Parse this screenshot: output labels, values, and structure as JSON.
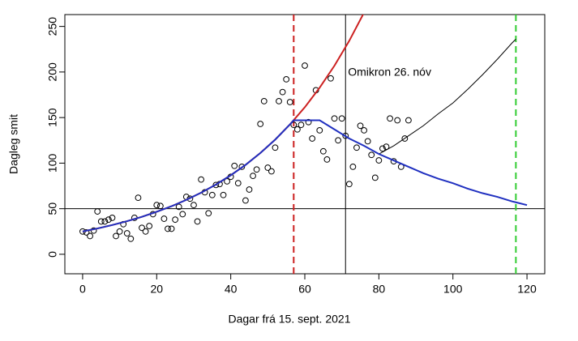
{
  "chart_data": {
    "type": "scatter",
    "xlabel": "Dagar frá 15. sept. 2021",
    "ylabel": "Dagleg smit",
    "xlim": [
      -4.8,
      124.8
    ],
    "ylim": [
      -21.4,
      263
    ],
    "xticks": [
      0,
      20,
      40,
      60,
      80,
      100,
      120
    ],
    "yticks": [
      0,
      50,
      100,
      150,
      200,
      250
    ],
    "point_color": "#000000",
    "x": [
      0,
      1,
      2,
      3,
      4,
      5,
      6,
      7,
      8,
      9,
      10,
      11,
      12,
      13,
      14,
      15,
      16,
      17,
      18,
      19,
      20,
      21,
      22,
      23,
      24,
      25,
      26,
      27,
      28,
      29,
      30,
      31,
      32,
      33,
      34,
      35,
      36,
      37,
      38,
      39,
      40,
      41,
      42,
      43,
      44,
      45,
      46,
      47,
      48,
      49,
      50,
      51,
      52,
      53,
      54,
      55,
      56,
      57,
      58,
      59,
      60,
      61,
      62,
      63,
      64,
      65,
      66,
      67,
      68,
      69,
      70,
      71,
      72,
      73,
      74,
      75,
      76,
      77,
      78,
      79,
      80,
      81,
      82,
      83,
      84,
      85,
      86,
      87,
      88
    ],
    "values": [
      25,
      24,
      20,
      26,
      47,
      36,
      36,
      38,
      40,
      20,
      25,
      33,
      23,
      17,
      40,
      62,
      29,
      25,
      31,
      44,
      54,
      53,
      39,
      28,
      28,
      38,
      52,
      44,
      63,
      61,
      54,
      36,
      82,
      68,
      45,
      65,
      76,
      77,
      65,
      80,
      85,
      97,
      78,
      96,
      59,
      71,
      86,
      93,
      143,
      168,
      95,
      91,
      117,
      168,
      178,
      192,
      167,
      142,
      137,
      142,
      207,
      145,
      127,
      180,
      136,
      113,
      104,
      193,
      149,
      125,
      149,
      130,
      77,
      96,
      117,
      141,
      136,
      124,
      109,
      84,
      103,
      116,
      118,
      149,
      102,
      147,
      96,
      127,
      147
    ],
    "lines": [
      {
        "color": "#cc2020",
        "width": 2,
        "x": [
          0,
          4,
          8,
          12,
          16,
          20,
          24,
          28,
          32,
          36,
          40,
          44,
          48,
          52,
          56,
          60,
          64,
          68,
          72,
          76
        ],
        "values": [
          25,
          28.3,
          32.1,
          36.3,
          41.1,
          46.6,
          52.7,
          59.7,
          67.6,
          76.5,
          86.7,
          98.1,
          111.1,
          125.8,
          142.5,
          161.3,
          182.7,
          206.9,
          234.2,
          265.2
        ]
      },
      {
        "color": "#000000",
        "width": 1,
        "x": [
          80,
          84,
          88,
          92,
          96,
          100,
          104,
          108,
          112,
          116,
          117
        ],
        "values": [
          110,
          119,
          130,
          141,
          154,
          166,
          181,
          197,
          214,
          232,
          236
        ]
      },
      {
        "color": "#2030c0",
        "width": 2,
        "x": [
          0,
          4,
          8,
          12,
          16,
          20,
          24,
          28,
          32,
          36,
          40,
          44,
          48,
          52,
          56,
          57,
          64,
          68,
          72,
          76,
          80,
          84,
          88,
          92,
          96,
          100,
          104,
          108,
          112,
          116,
          120
        ],
        "values": [
          25,
          28.3,
          32.1,
          36.3,
          41.1,
          46.6,
          52.7,
          59.7,
          67.6,
          76.5,
          86.7,
          98.1,
          111.1,
          125.8,
          142.5,
          147,
          147,
          137,
          127,
          119,
          110,
          103,
          96,
          89,
          83,
          78,
          72,
          67,
          63,
          58,
          54
        ]
      }
    ],
    "vlines": [
      {
        "value": 57,
        "color": "#cc2020",
        "style": "dashed"
      },
      {
        "value": 71,
        "color": "#000000",
        "style": "solid"
      },
      {
        "value": 117,
        "color": "#33cc33",
        "style": "dashed"
      }
    ],
    "hlines": [
      {
        "value": 50,
        "color": "#000000",
        "style": "solid"
      }
    ],
    "annotation": "Omikron 26. nóv"
  }
}
